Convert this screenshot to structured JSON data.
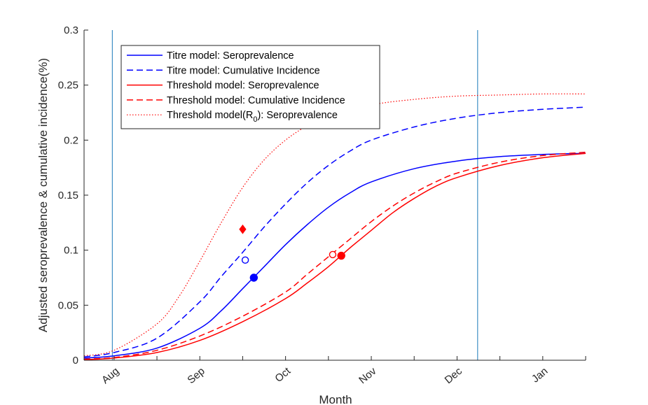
{
  "chart_data": {
    "type": "line",
    "xlabel": "Month",
    "ylabel": "Adjusted seroprevalence & cumulative incidence(%)",
    "x_tick_labels": [
      "Aug",
      "Sep",
      "Oct",
      "Nov",
      "Dec",
      "Jan"
    ],
    "x_tick_positions_months": [
      1,
      2,
      3,
      4,
      5,
      6
    ],
    "xlim": [
      0.65,
      6.5
    ],
    "ylim": [
      0,
      0.3
    ],
    "y_ticks": [
      0,
      0.05,
      0.1,
      0.15,
      0.2,
      0.25,
      0.3
    ],
    "y_tick_labels": [
      "0",
      "0.05",
      "0.1",
      "0.15",
      "0.2",
      "0.25",
      "0.3"
    ],
    "grid": false,
    "legend_position": "top-left",
    "vertical_lines_at_months": [
      0.98,
      5.24
    ],
    "series": [
      {
        "name": "Titre model: Seroprevalence",
        "color": "#0000ff",
        "style": "solid",
        "x": [
          0.65,
          1.0,
          1.5,
          2.0,
          2.25,
          2.5,
          2.75,
          3.0,
          3.25,
          3.5,
          3.75,
          4.0,
          4.5,
          5.0,
          5.5,
          6.0,
          6.5
        ],
        "y": [
          0.002,
          0.004,
          0.011,
          0.029,
          0.045,
          0.065,
          0.085,
          0.105,
          0.123,
          0.139,
          0.152,
          0.162,
          0.174,
          0.181,
          0.185,
          0.187,
          0.188
        ]
      },
      {
        "name": "Titre model: Cumulative Incidence",
        "color": "#0000ff",
        "style": "dashed",
        "x": [
          0.65,
          1.0,
          1.5,
          2.0,
          2.25,
          2.5,
          2.75,
          3.0,
          3.25,
          3.5,
          3.75,
          4.0,
          4.5,
          5.0,
          5.5,
          6.0,
          6.5
        ],
        "y": [
          0.003,
          0.007,
          0.02,
          0.053,
          0.076,
          0.098,
          0.121,
          0.142,
          0.161,
          0.177,
          0.19,
          0.2,
          0.212,
          0.22,
          0.225,
          0.228,
          0.23
        ]
      },
      {
        "name": "Threshold model: Seroprevalence",
        "color": "#ff0000",
        "style": "solid",
        "x": [
          0.65,
          1.0,
          1.5,
          2.0,
          2.5,
          3.0,
          3.25,
          3.5,
          3.75,
          4.0,
          4.25,
          4.5,
          4.75,
          5.0,
          5.5,
          6.0,
          6.5
        ],
        "y": [
          0.0005,
          0.002,
          0.007,
          0.018,
          0.035,
          0.056,
          0.07,
          0.085,
          0.102,
          0.118,
          0.134,
          0.147,
          0.158,
          0.166,
          0.177,
          0.184,
          0.188
        ]
      },
      {
        "name": "Threshold model: Cumulative Incidence",
        "color": "#ff0000",
        "style": "dashed",
        "x": [
          0.65,
          1.0,
          1.5,
          2.0,
          2.5,
          3.0,
          3.25,
          3.5,
          3.75,
          4.0,
          4.25,
          4.5,
          4.75,
          5.0,
          5.5,
          6.0,
          6.5
        ],
        "y": [
          0.001,
          0.0025,
          0.009,
          0.022,
          0.04,
          0.062,
          0.078,
          0.094,
          0.11,
          0.126,
          0.14,
          0.152,
          0.162,
          0.17,
          0.18,
          0.186,
          0.189
        ]
      },
      {
        "name": "Threshold model(R0): Seroprevalence",
        "color": "#ff0000",
        "style": "dotted",
        "x": [
          0.65,
          1.0,
          1.5,
          1.75,
          2.0,
          2.25,
          2.5,
          2.75,
          3.0,
          3.25,
          3.5,
          4.0,
          4.5,
          5.0,
          5.5,
          6.0,
          6.5
        ],
        "y": [
          0.004,
          0.009,
          0.033,
          0.057,
          0.09,
          0.125,
          0.157,
          0.182,
          0.2,
          0.213,
          0.222,
          0.232,
          0.237,
          0.24,
          0.241,
          0.242,
          0.242
        ]
      }
    ],
    "markers": [
      {
        "x": 2.53,
        "y": 0.091,
        "shape": "circle",
        "fill": "none",
        "color": "#0000ff"
      },
      {
        "x": 2.63,
        "y": 0.075,
        "shape": "circle",
        "fill": "#0000ff",
        "color": "#0000ff"
      },
      {
        "x": 2.5,
        "y": 0.119,
        "shape": "diamond",
        "fill": "#ff0000",
        "color": "#ff0000"
      },
      {
        "x": 3.55,
        "y": 0.096,
        "shape": "circle",
        "fill": "none",
        "color": "#ff0000"
      },
      {
        "x": 3.65,
        "y": 0.095,
        "shape": "circle",
        "fill": "#ff0000",
        "color": "#ff0000"
      }
    ]
  },
  "legend": {
    "items": [
      {
        "label": "Titre model: Seroprevalence",
        "sub": "",
        "rest": "",
        "color": "#0000ff",
        "style": "solid"
      },
      {
        "label": "Titre model: Cumulative Incidence",
        "sub": "",
        "rest": "",
        "color": "#0000ff",
        "style": "dashed"
      },
      {
        "label": "Threshold model: Seroprevalence",
        "sub": "",
        "rest": "",
        "color": "#ff0000",
        "style": "solid"
      },
      {
        "label": "Threshold model: Cumulative Incidence",
        "sub": "",
        "rest": "",
        "color": "#ff0000",
        "style": "dashed"
      },
      {
        "label": "Threshold model(R",
        "sub": "0",
        "rest": "): Seroprevalence",
        "color": "#ff0000",
        "style": "dotted"
      }
    ]
  },
  "colors": {
    "vline": "#3f8fc5",
    "axis": "#262626"
  }
}
